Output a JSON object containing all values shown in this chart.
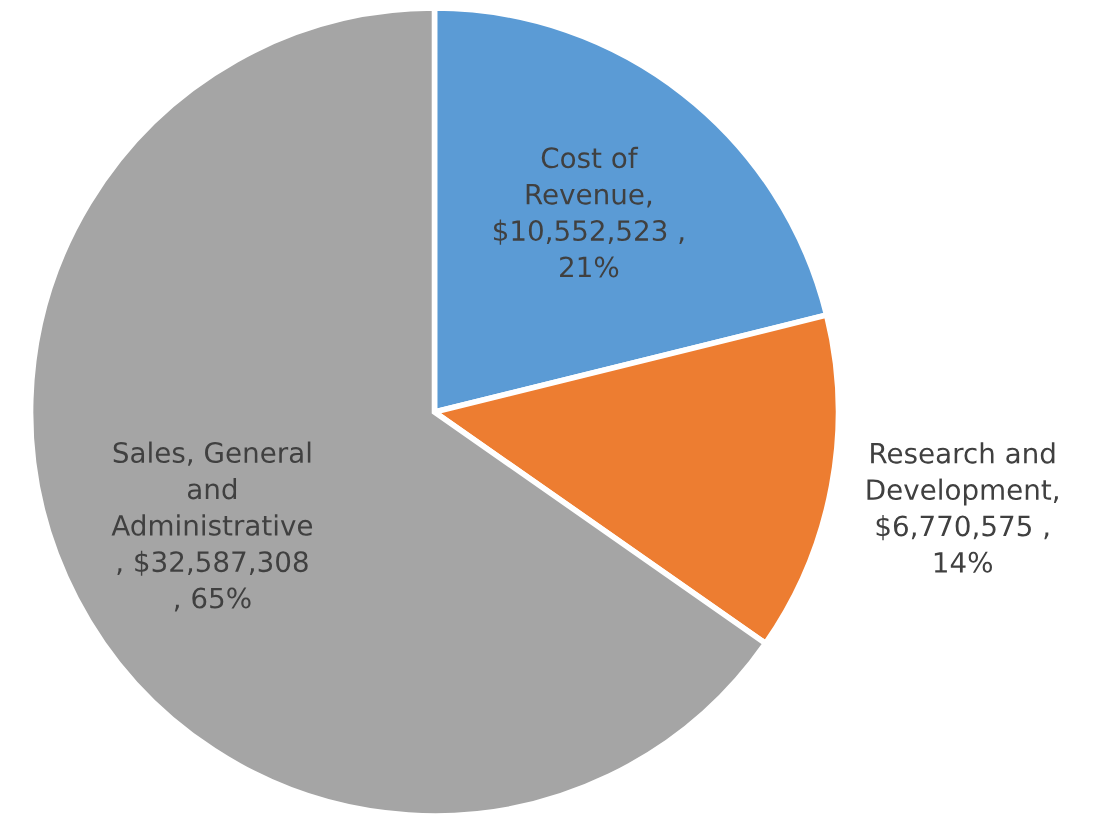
{
  "chart_data": {
    "type": "pie",
    "categories": [
      "Cost of\nRevenue",
      "Research and\nDevelopment",
      "Sales, General\nand\nAdministrative"
    ],
    "values": [
      10552523,
      6770575,
      32587308
    ],
    "value_labels": [
      ",\n$10,552,523 ,\n21%",
      ",\n$6,770,575 ,\n14%",
      "\n, $32,587,308\n, 65%"
    ],
    "colors": [
      "#5b9bd5",
      "#ed7d31",
      "#a5a5a5"
    ],
    "legend": false
  }
}
